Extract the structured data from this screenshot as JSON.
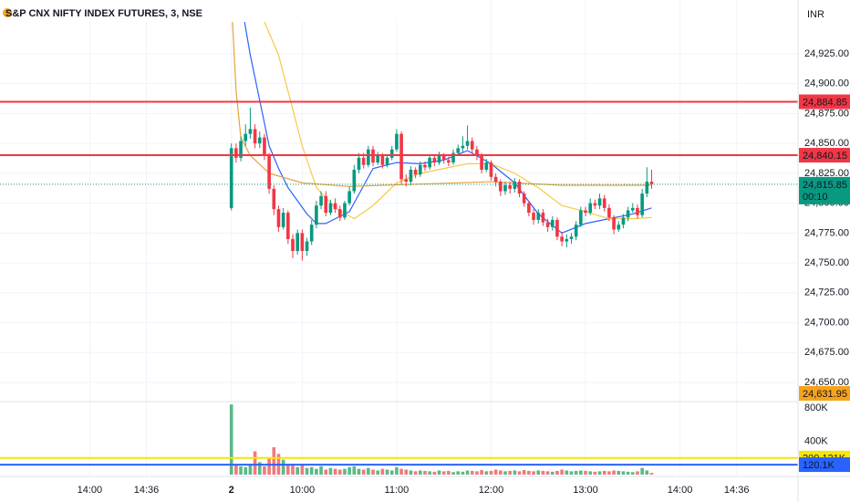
{
  "chart_data": {
    "type": "candlestick",
    "title": "S&P CNX NIFTY INDEX FUTURES, 3, NSE",
    "currency": "INR",
    "colors": {
      "up": "#089981",
      "down": "#f23645",
      "up_volume": "#5cb88a",
      "down_volume": "#f07a7a"
    },
    "x": [
      0,
      1,
      2,
      3,
      4,
      5,
      6,
      7,
      8,
      9,
      10,
      11,
      12,
      13,
      14,
      15,
      16,
      17,
      18,
      19,
      20,
      21,
      22,
      23,
      24,
      25,
      26,
      27,
      28,
      29,
      30,
      31,
      32,
      33,
      34,
      35,
      36,
      37,
      38,
      39,
      40,
      41,
      42,
      43,
      44,
      45,
      46,
      47,
      48,
      49,
      50,
      51,
      52,
      53,
      54,
      55,
      56,
      57,
      58,
      59,
      60,
      61,
      62,
      63,
      64,
      65,
      66,
      67,
      68,
      69,
      70,
      71,
      72,
      73,
      74,
      75,
      76,
      77,
      78,
      79,
      80,
      81,
      82,
      83,
      84,
      85,
      86,
      87,
      88,
      89
    ],
    "open": [
      24796,
      24846,
      24838,
      24852,
      24858,
      24862,
      24850,
      24855,
      24840,
      24812,
      24795,
      24780,
      24792,
      24770,
      24760,
      24775,
      24760,
      24768,
      24782,
      24798,
      24806,
      24792,
      24800,
      24795,
      24788,
      24800,
      24810,
      24828,
      24838,
      24832,
      24845,
      24834,
      24840,
      24832,
      24838,
      24845,
      24858,
      24820,
      24818,
      24828,
      24824,
      24832,
      24830,
      24838,
      24834,
      24840,
      24836,
      24834,
      24842,
      24846,
      24848,
      24852,
      24845,
      24840,
      24828,
      24834,
      24822,
      24818,
      24810,
      24815,
      24812,
      24818,
      24808,
      24800,
      24792,
      24786,
      24792,
      24784,
      24780,
      24786,
      24772,
      24768,
      24770,
      24772,
      24782,
      24794,
      24792,
      24800,
      24798,
      24804,
      24796,
      24788,
      24778,
      24782,
      24788,
      24794,
      24796,
      24790,
      24808,
      24818
    ],
    "high": [
      24850,
      24850,
      24856,
      24866,
      24880,
      24866,
      24860,
      24858,
      24842,
      24815,
      24798,
      24796,
      24794,
      24774,
      24778,
      24778,
      24771,
      24786,
      24802,
      24810,
      24810,
      24803,
      24804,
      24798,
      24802,
      24814,
      24832,
      24842,
      24842,
      24848,
      24848,
      24843,
      24842,
      24841,
      24848,
      24862,
      24860,
      24824,
      24831,
      24830,
      24835,
      24835,
      24841,
      24840,
      24843,
      24842,
      24839,
      24845,
      24849,
      24856,
      24865,
      24855,
      24848,
      24842,
      24837,
      24836,
      24825,
      24820,
      24818,
      24818,
      24821,
      24820,
      24810,
      24802,
      24795,
      24795,
      24795,
      24787,
      24789,
      24788,
      24776,
      24774,
      24775,
      24785,
      24797,
      24797,
      24804,
      24803,
      24808,
      24807,
      24799,
      24790,
      24785,
      24791,
      24797,
      24800,
      24799,
      24812,
      24830,
      24828
    ],
    "low": [
      24794,
      24834,
      24835,
      24848,
      24854,
      24846,
      24846,
      24836,
      24808,
      24790,
      24776,
      24778,
      24766,
      24754,
      24757,
      24752,
      24756,
      24765,
      24779,
      24795,
      24789,
      24790,
      24792,
      24785,
      24786,
      24798,
      24808,
      24825,
      24829,
      24830,
      24831,
      24832,
      24829,
      24830,
      24836,
      24843,
      24816,
      24814,
      24815,
      24821,
      24822,
      24827,
      24828,
      24831,
      24832,
      24833,
      24831,
      24832,
      24840,
      24843,
      24845,
      24842,
      24836,
      24825,
      24826,
      24819,
      24814,
      24806,
      24807,
      24808,
      24809,
      24805,
      24797,
      24789,
      24782,
      24783,
      24781,
      24776,
      24777,
      24769,
      24764,
      24763,
      24766,
      24769,
      24780,
      24789,
      24790,
      24795,
      24795,
      24793,
      24785,
      24774,
      24776,
      24779,
      24785,
      24792,
      24787,
      24788,
      24805,
      24812
    ],
    "close": [
      24846,
      24838,
      24852,
      24858,
      24862,
      24850,
      24855,
      24840,
      24812,
      24795,
      24780,
      24792,
      24770,
      24760,
      24775,
      24760,
      24768,
      24782,
      24798,
      24806,
      24792,
      24800,
      24795,
      24788,
      24800,
      24810,
      24828,
      24838,
      24832,
      24845,
      24834,
      24840,
      24832,
      24838,
      24845,
      24858,
      24820,
      24818,
      24828,
      24824,
      24832,
      24830,
      24838,
      24834,
      24840,
      24836,
      24834,
      24842,
      24846,
      24848,
      24852,
      24845,
      24840,
      24828,
      24834,
      24822,
      24818,
      24810,
      24815,
      24812,
      24818,
      24808,
      24800,
      24792,
      24786,
      24792,
      24784,
      24780,
      24786,
      24772,
      24768,
      24770,
      24772,
      24782,
      24794,
      24792,
      24800,
      24798,
      24804,
      24796,
      24788,
      24778,
      24782,
      24788,
      24794,
      24796,
      24790,
      24808,
      24818,
      24815.85
    ],
    "volume": [
      845000,
      120000,
      100000,
      90000,
      110000,
      280000,
      150000,
      100000,
      200000,
      330000,
      250000,
      180000,
      120000,
      130000,
      90000,
      110000,
      80000,
      90000,
      70000,
      100000,
      60000,
      80000,
      70000,
      60000,
      70000,
      90000,
      100000,
      70000,
      60000,
      80000,
      60000,
      50000,
      70000,
      60000,
      50000,
      90000,
      70000,
      60000,
      50000,
      40000,
      50000,
      45000,
      40000,
      35000,
      50000,
      40000,
      45000,
      30000,
      40000,
      35000,
      50000,
      45000,
      40000,
      55000,
      40000,
      45000,
      60000,
      50000,
      40000,
      45000,
      50000,
      40000,
      55000,
      45000,
      40000,
      50000,
      45000,
      40000,
      35000,
      45000,
      60000,
      50000,
      40000,
      45000,
      50000,
      45000,
      40000,
      35000,
      40000,
      45000,
      40000,
      50000,
      45000,
      40000,
      35000,
      30000,
      40000,
      80000,
      50000,
      20000
    ],
    "overlays": [
      {
        "color": "#2962ff",
        "x": [
          2,
          4,
          6,
          8,
          10,
          12,
          14,
          16,
          18,
          20,
          25,
          30,
          35,
          40,
          45,
          50,
          55,
          60,
          65,
          70,
          75,
          80,
          85,
          89
        ],
        "values": [
          24970,
          24924,
          24886,
          24848,
          24829,
          24813,
          24802,
          24791,
          24783,
          24783,
          24793,
          24829,
          24834,
          24833,
          24836,
          24844,
          24833,
          24817,
          24791,
          24775,
          24783,
          24787,
          24791,
          24796
        ]
      },
      {
        "color": "#f7c948",
        "x": [
          5,
          10,
          15,
          18,
          22,
          26,
          30,
          35,
          40,
          45,
          50,
          55,
          60,
          65,
          70,
          75,
          80,
          85,
          89
        ],
        "values": [
          24970,
          24924,
          24848,
          24813,
          24796,
          24787,
          24798,
          24817,
          24825,
          24829,
          24833,
          24833,
          24825,
          24813,
          24798,
          24793,
          24787,
          24787,
          24788
        ]
      },
      {
        "color": "#e8a33a",
        "x": [
          0,
          1,
          2,
          4,
          8,
          15,
          25,
          40,
          55,
          70,
          89
        ],
        "values": [
          24970,
          24894,
          24855,
          24840,
          24825,
          24817,
          24814,
          24816,
          24818,
          24815,
          24815
        ]
      }
    ],
    "xlim": [
      -49,
      120
    ],
    "xticks": [
      {
        "value": -30,
        "label": "14:00"
      },
      {
        "value": -18,
        "label": "14:36"
      },
      {
        "value": 0,
        "label": "2"
      },
      {
        "value": 15,
        "label": "10:00"
      },
      {
        "value": 35,
        "label": "11:00"
      },
      {
        "value": 55,
        "label": "12:00"
      },
      {
        "value": 75,
        "label": "13:00"
      },
      {
        "value": 95,
        "label": "14:00"
      },
      {
        "value": 107,
        "label": "14:36"
      }
    ],
    "ylim": [
      24634,
      24970
    ],
    "yticks": [
      {
        "value": 24650,
        "label": "24,650.00"
      },
      {
        "value": 24675,
        "label": "24,675.00"
      },
      {
        "value": 24700,
        "label": "24,700.00"
      },
      {
        "value": 24725,
        "label": "24,725.00"
      },
      {
        "value": 24750,
        "label": "24,750.00"
      },
      {
        "value": 24775,
        "label": "24,775.00"
      },
      {
        "value": 24800,
        "label": "24,800.00"
      },
      {
        "value": 24825,
        "label": "24,825.00"
      },
      {
        "value": 24850,
        "label": "24,850.00"
      },
      {
        "value": 24875,
        "label": "24,875.00"
      },
      {
        "value": 24900,
        "label": "24,900.00"
      },
      {
        "value": 24925,
        "label": "24,925.00"
      }
    ],
    "levels": [
      {
        "value": 24884.85,
        "label": "24,884.85",
        "color": "#f23645"
      },
      {
        "value": 24840.15,
        "label": "24,840.15",
        "color": "#f23645"
      }
    ],
    "last_price": {
      "value": 24815.85,
      "label": "24,815.85",
      "countdown": "00:10",
      "color": "#089981"
    },
    "vwap_label": {
      "value": 24631.95,
      "label": "24,631.95",
      "color": "#f7a21b"
    },
    "volume_ylim": [
      0,
      880000
    ],
    "volume_yticks": [
      {
        "value": 400000,
        "label": "400K"
      },
      {
        "value": 800000,
        "label": "800K"
      }
    ],
    "volume_levels": [
      {
        "value": 200121,
        "label": "200.121K",
        "color": "#f5e60a"
      },
      {
        "value": 120100,
        "label": "120.1K",
        "color": "#2962ff"
      }
    ]
  }
}
